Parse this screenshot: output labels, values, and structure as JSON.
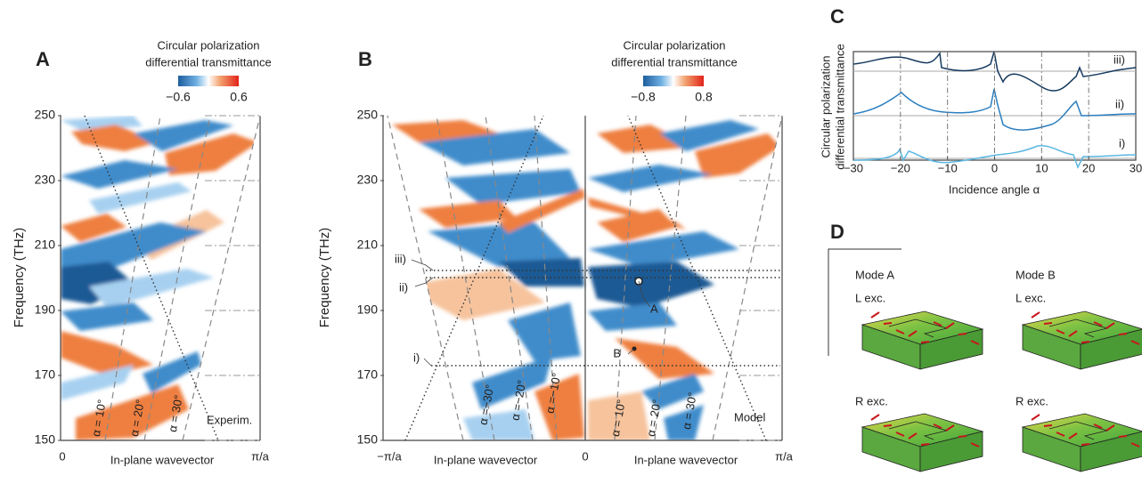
{
  "figure": {
    "panel_a": {
      "label": "A",
      "colorbar_title": [
        "Circular polarization",
        "differential transmittance"
      ],
      "colorbar_ticks": [
        {
          "value": -0.6,
          "label": "−0.6"
        },
        0.6
      ],
      "y_label": "Frequency (THz)",
      "ylim": [
        150,
        250
      ],
      "yticks": [
        150,
        170,
        190,
        210,
        230,
        250
      ],
      "x_tick_labels": [
        "0",
        "π/a"
      ],
      "x_label": "In-plane wavevector",
      "angle_labels": [
        "α = 10°",
        "α = 20°",
        "α = 30°"
      ],
      "annotation": "Experim."
    },
    "panel_b": {
      "label": "B",
      "colorbar_title": [
        "Circular polarization",
        "differential transmittance"
      ],
      "colorbar_ticks": [
        {
          "value": -0.8,
          "label": "−0.8"
        },
        0.8
      ],
      "y_label": "Frequency (THz)",
      "ylim": [
        150,
        250
      ],
      "yticks": [
        150,
        170,
        190,
        210,
        230,
        250
      ],
      "x_tick_labels": [
        "−π/a",
        "0",
        "π/a"
      ],
      "x_labels": [
        "In-plane wavevector",
        "In-plane wavevector"
      ],
      "angle_labels": [
        "α =−30°",
        "α =−20°",
        "α =−10°",
        "α = 10°",
        "α = 20°",
        "α = 30°"
      ],
      "cut_labels": [
        "iii)",
        "ii)",
        "i)"
      ],
      "mode_labels": [
        "A",
        "B"
      ],
      "annotation": "Model"
    },
    "panel_c": {
      "label": "C",
      "y_label": [
        "Circular polarization",
        "differential transmittance"
      ],
      "x_label": "Incidence angle α",
      "xlim": [
        -30,
        30
      ],
      "xticks": [
        {
          "value": -30,
          "label": "−30"
        },
        {
          "value": -20,
          "label": "−20"
        },
        {
          "value": -10,
          "label": "−10"
        },
        0,
        10,
        20,
        30
      ],
      "curve_labels": [
        "iii)",
        "ii)",
        "i)"
      ]
    },
    "panel_d": {
      "label": "D",
      "modes": [
        {
          "title": "Mode A",
          "rows": [
            "L exc.",
            "R exc."
          ]
        },
        {
          "title": "Mode B",
          "rows": [
            "L exc.",
            "R exc."
          ]
        }
      ]
    }
  }
}
